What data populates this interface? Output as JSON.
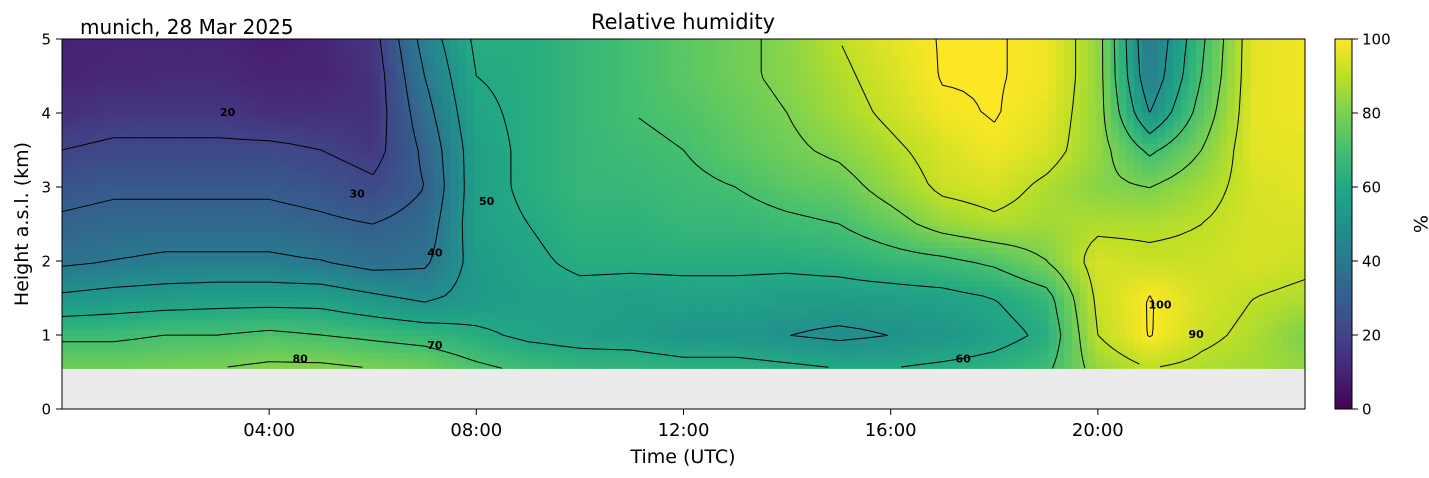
{
  "chart_data": {
    "type": "heatmap",
    "title": "Relative humidity",
    "location_date": "munich, 28 Mar 2025",
    "xlabel": "Time (UTC)",
    "ylabel": "Height a.s.l. (km)",
    "colorbar_label": "%",
    "colormap": "viridis",
    "xlim": [
      0,
      24
    ],
    "ylim": [
      0,
      5
    ],
    "x_ticks": [
      4,
      8,
      12,
      16,
      20
    ],
    "x_tick_labels": [
      "04:00",
      "08:00",
      "12:00",
      "16:00",
      "20:00"
    ],
    "y_ticks": [
      0,
      1,
      2,
      3,
      4,
      5
    ],
    "y_tick_labels": [
      "0",
      "1",
      "2",
      "3",
      "4",
      "5"
    ],
    "clim": [
      0,
      100
    ],
    "cbar_ticks": [
      0,
      20,
      40,
      60,
      80,
      100
    ],
    "cbar_tick_labels": [
      "0",
      "20",
      "40",
      "60",
      "80",
      "100"
    ],
    "data_bottom_km": 0.55,
    "times_h": [
      0,
      1,
      2,
      3,
      4,
      5,
      6,
      7,
      8,
      9,
      10,
      11,
      12,
      13,
      14,
      15,
      16,
      17,
      18,
      19,
      20,
      21,
      22,
      23,
      24
    ],
    "heights_km": [
      0.55,
      1,
      1.5,
      2,
      2.5,
      3,
      3.5,
      4,
      4.5,
      5
    ],
    "rh_percent": [
      [
        78,
        78,
        79,
        80,
        82,
        82,
        80,
        78,
        72,
        68,
        66,
        66,
        64,
        64,
        62,
        60,
        60,
        62,
        64,
        68,
        84,
        90,
        88,
        86,
        84
      ],
      [
        68,
        68,
        70,
        70,
        72,
        70,
        68,
        66,
        62,
        58,
        56,
        55,
        52,
        52,
        50,
        48,
        50,
        52,
        56,
        62,
        90,
        100,
        92,
        88,
        80
      ],
      [
        52,
        54,
        55,
        56,
        56,
        56,
        52,
        48,
        54,
        56,
        57,
        56,
        57,
        57,
        56,
        56,
        56,
        57,
        60,
        66,
        92,
        100,
        94,
        90,
        88
      ],
      [
        38,
        40,
        42,
        42,
        42,
        40,
        36,
        38,
        54,
        58,
        62,
        62,
        62,
        62,
        62,
        63,
        66,
        68,
        72,
        80,
        94,
        92,
        92,
        94,
        92
      ],
      [
        32,
        34,
        34,
        34,
        34,
        32,
        30,
        34,
        56,
        60,
        64,
        64,
        66,
        66,
        68,
        70,
        76,
        84,
        88,
        86,
        88,
        88,
        90,
        94,
        94
      ],
      [
        26,
        28,
        28,
        28,
        28,
        26,
        22,
        30,
        56,
        62,
        66,
        66,
        68,
        70,
        74,
        76,
        84,
        92,
        94,
        88,
        82,
        80,
        86,
        94,
        96
      ],
      [
        20,
        22,
        22,
        22,
        22,
        20,
        16,
        32,
        56,
        62,
        66,
        68,
        70,
        74,
        78,
        82,
        88,
        94,
        98,
        94,
        84,
        68,
        80,
        96,
        96
      ],
      [
        14,
        16,
        16,
        16,
        14,
        14,
        14,
        36,
        58,
        62,
        66,
        70,
        72,
        76,
        80,
        86,
        92,
        98,
        100,
        96,
        84,
        50,
        74,
        96,
        98
      ],
      [
        10,
        11,
        12,
        12,
        10,
        10,
        14,
        40,
        60,
        62,
        66,
        70,
        74,
        78,
        82,
        88,
        94,
        100,
        100,
        98,
        84,
        42,
        70,
        96,
        98
      ],
      [
        9,
        10,
        10,
        10,
        8,
        10,
        16,
        44,
        62,
        62,
        66,
        70,
        74,
        78,
        82,
        90,
        96,
        100,
        100,
        98,
        84,
        40,
        68,
        96,
        98
      ]
    ],
    "contour_levels": [
      20,
      30,
      40,
      50,
      60,
      70,
      80,
      90,
      100
    ],
    "contour_labels": [
      {
        "text": "20",
        "t": 3.2,
        "h": 4.0
      },
      {
        "text": "30",
        "t": 5.7,
        "h": 2.9
      },
      {
        "text": "40",
        "t": 7.2,
        "h": 2.1
      },
      {
        "text": "50",
        "t": 8.2,
        "h": 2.8
      },
      {
        "text": "60",
        "t": 17.4,
        "h": 0.67
      },
      {
        "text": "70",
        "t": 7.2,
        "h": 0.85
      },
      {
        "text": "80",
        "t": 4.6,
        "h": 0.67
      },
      {
        "text": "90",
        "t": 21.9,
        "h": 1.0
      },
      {
        "text": "100",
        "t": 21.2,
        "h": 1.4
      }
    ]
  }
}
